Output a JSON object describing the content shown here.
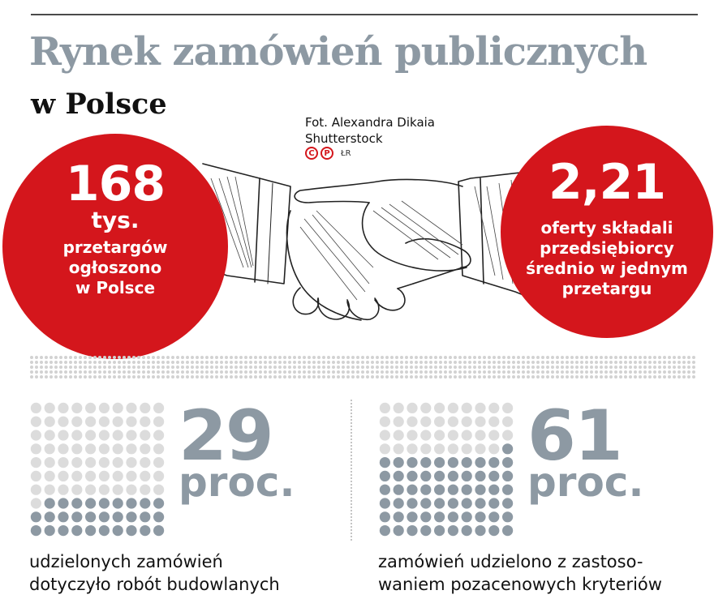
{
  "title": "Rynek zamówień publicznych",
  "subtitle": "w Polsce",
  "photo_credit": {
    "line1": "Fot. Alexandra Dikaia",
    "line2": "Shutterstock",
    "badge1": "C",
    "badge2": "P",
    "mark": "ŁR"
  },
  "left_stat": {
    "value": "168",
    "unit": "tys.",
    "lines": [
      "przetargów",
      "ogłoszono",
      "w Polsce"
    ]
  },
  "right_stat": {
    "value": "2,21",
    "lines": [
      "oferty składali",
      "przedsiębiorcy",
      "średnio w jednym",
      "przetargu"
    ]
  },
  "colors": {
    "accent_red": "#d4161c",
    "gray_text": "#8d99a3",
    "dot_light": "#dcdcdc",
    "dot_dark": "#8d99a3"
  },
  "stats": [
    {
      "value": "29",
      "unit": "proc.",
      "percent": 29,
      "desc_lines": [
        "udzielonych zamówień",
        "dotyczyło robót budowlanych"
      ]
    },
    {
      "value": "61",
      "unit": "proc.",
      "percent": 61,
      "desc_lines": [
        "zamówień udzielono z zastoso-",
        "waniem pozacenowych kryteriów"
      ]
    }
  ],
  "illustration": "handshake-sketch"
}
